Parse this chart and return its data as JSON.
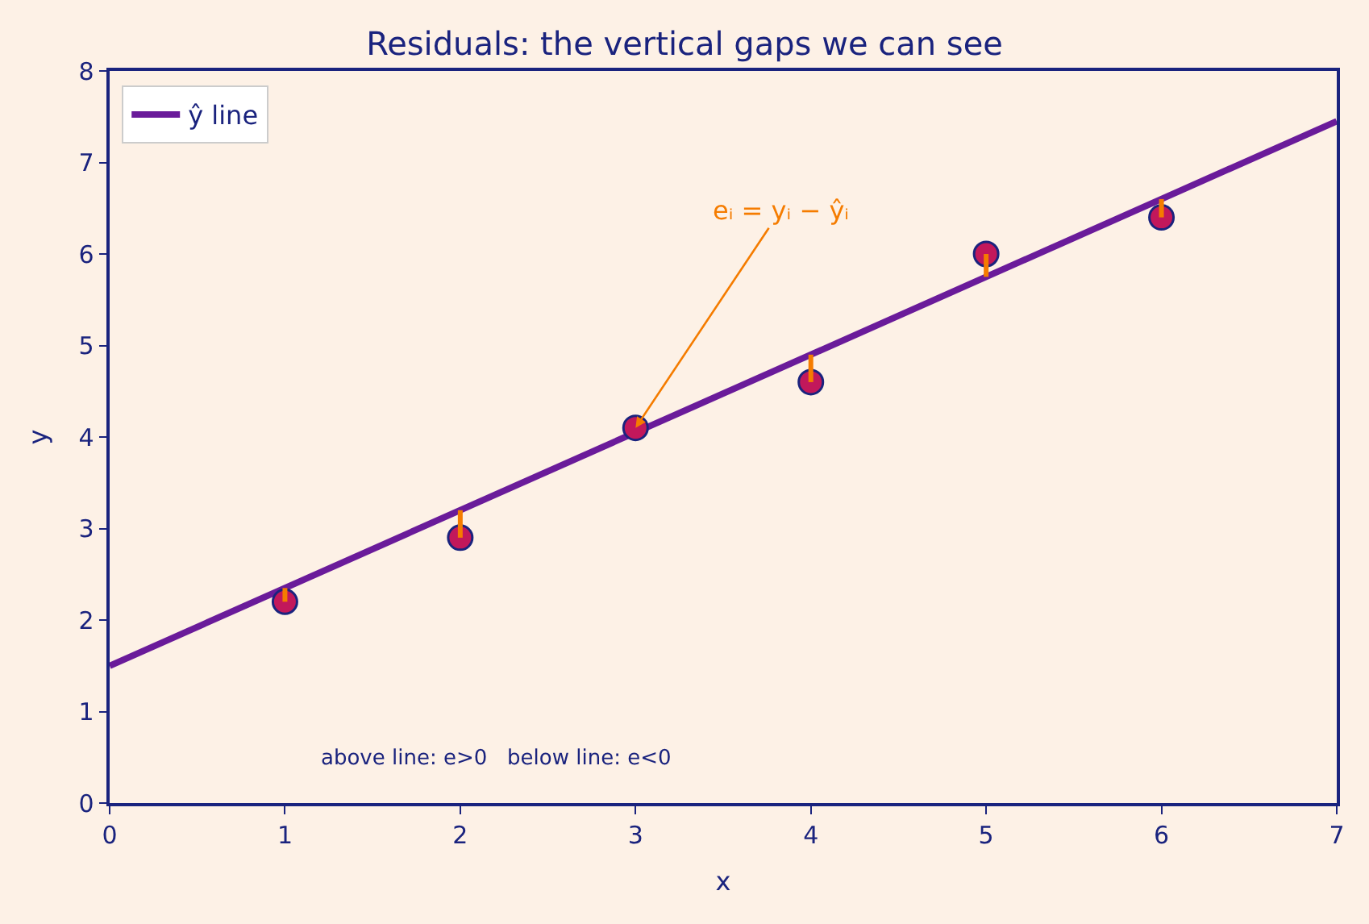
{
  "chart_data": {
    "type": "scatter",
    "title": "Residuals: the vertical gaps we can see",
    "xlabel": "x",
    "ylabel": "y",
    "xlim": [
      0,
      7
    ],
    "xticks": [
      0,
      1,
      2,
      3,
      4,
      5,
      6,
      7
    ],
    "ylim": [
      0,
      8
    ],
    "yticks": [
      0,
      1,
      2,
      3,
      4,
      5,
      6,
      7,
      8
    ],
    "grid": false,
    "legend": "top left",
    "marker": "circle",
    "series": [
      {
        "type": "line",
        "name": "ŷ line",
        "color": "#6a1b9a",
        "x": [
          0,
          7
        ],
        "values": [
          1.5,
          7.45
        ],
        "marker": "none"
      },
      {
        "color": "#c2185b",
        "x": [
          1,
          2,
          3,
          4,
          5,
          6
        ],
        "values": [
          2.2,
          2.9,
          4.1,
          4.6,
          6.0,
          6.4
        ]
      },
      {
        "type": "line",
        "color": "#f57c00",
        "x": [
          1,
          1
        ],
        "values": [
          2.2,
          2.35
        ],
        "marker": "none"
      },
      {
        "type": "line",
        "color": "#f57c00",
        "x": [
          2,
          2
        ],
        "values": [
          2.9,
          3.2
        ],
        "marker": "none"
      },
      {
        "type": "line",
        "color": "#f57c00",
        "x": [
          4,
          4
        ],
        "values": [
          4.6,
          4.9
        ],
        "marker": "none"
      },
      {
        "type": "line",
        "color": "#f57c00",
        "x": [
          5,
          5
        ],
        "values": [
          6.0,
          5.75
        ],
        "marker": "none"
      },
      {
        "type": "line",
        "color": "#f57c00",
        "x": [
          6,
          6
        ],
        "values": [
          6.4,
          6.6
        ],
        "marker": "none"
      }
    ],
    "annotations": [
      {
        "text": "eᵢ = yᵢ − ŷᵢ",
        "x": 3,
        "y": 4.1
      },
      "above line: e>0   below line: e<0"
    ]
  }
}
